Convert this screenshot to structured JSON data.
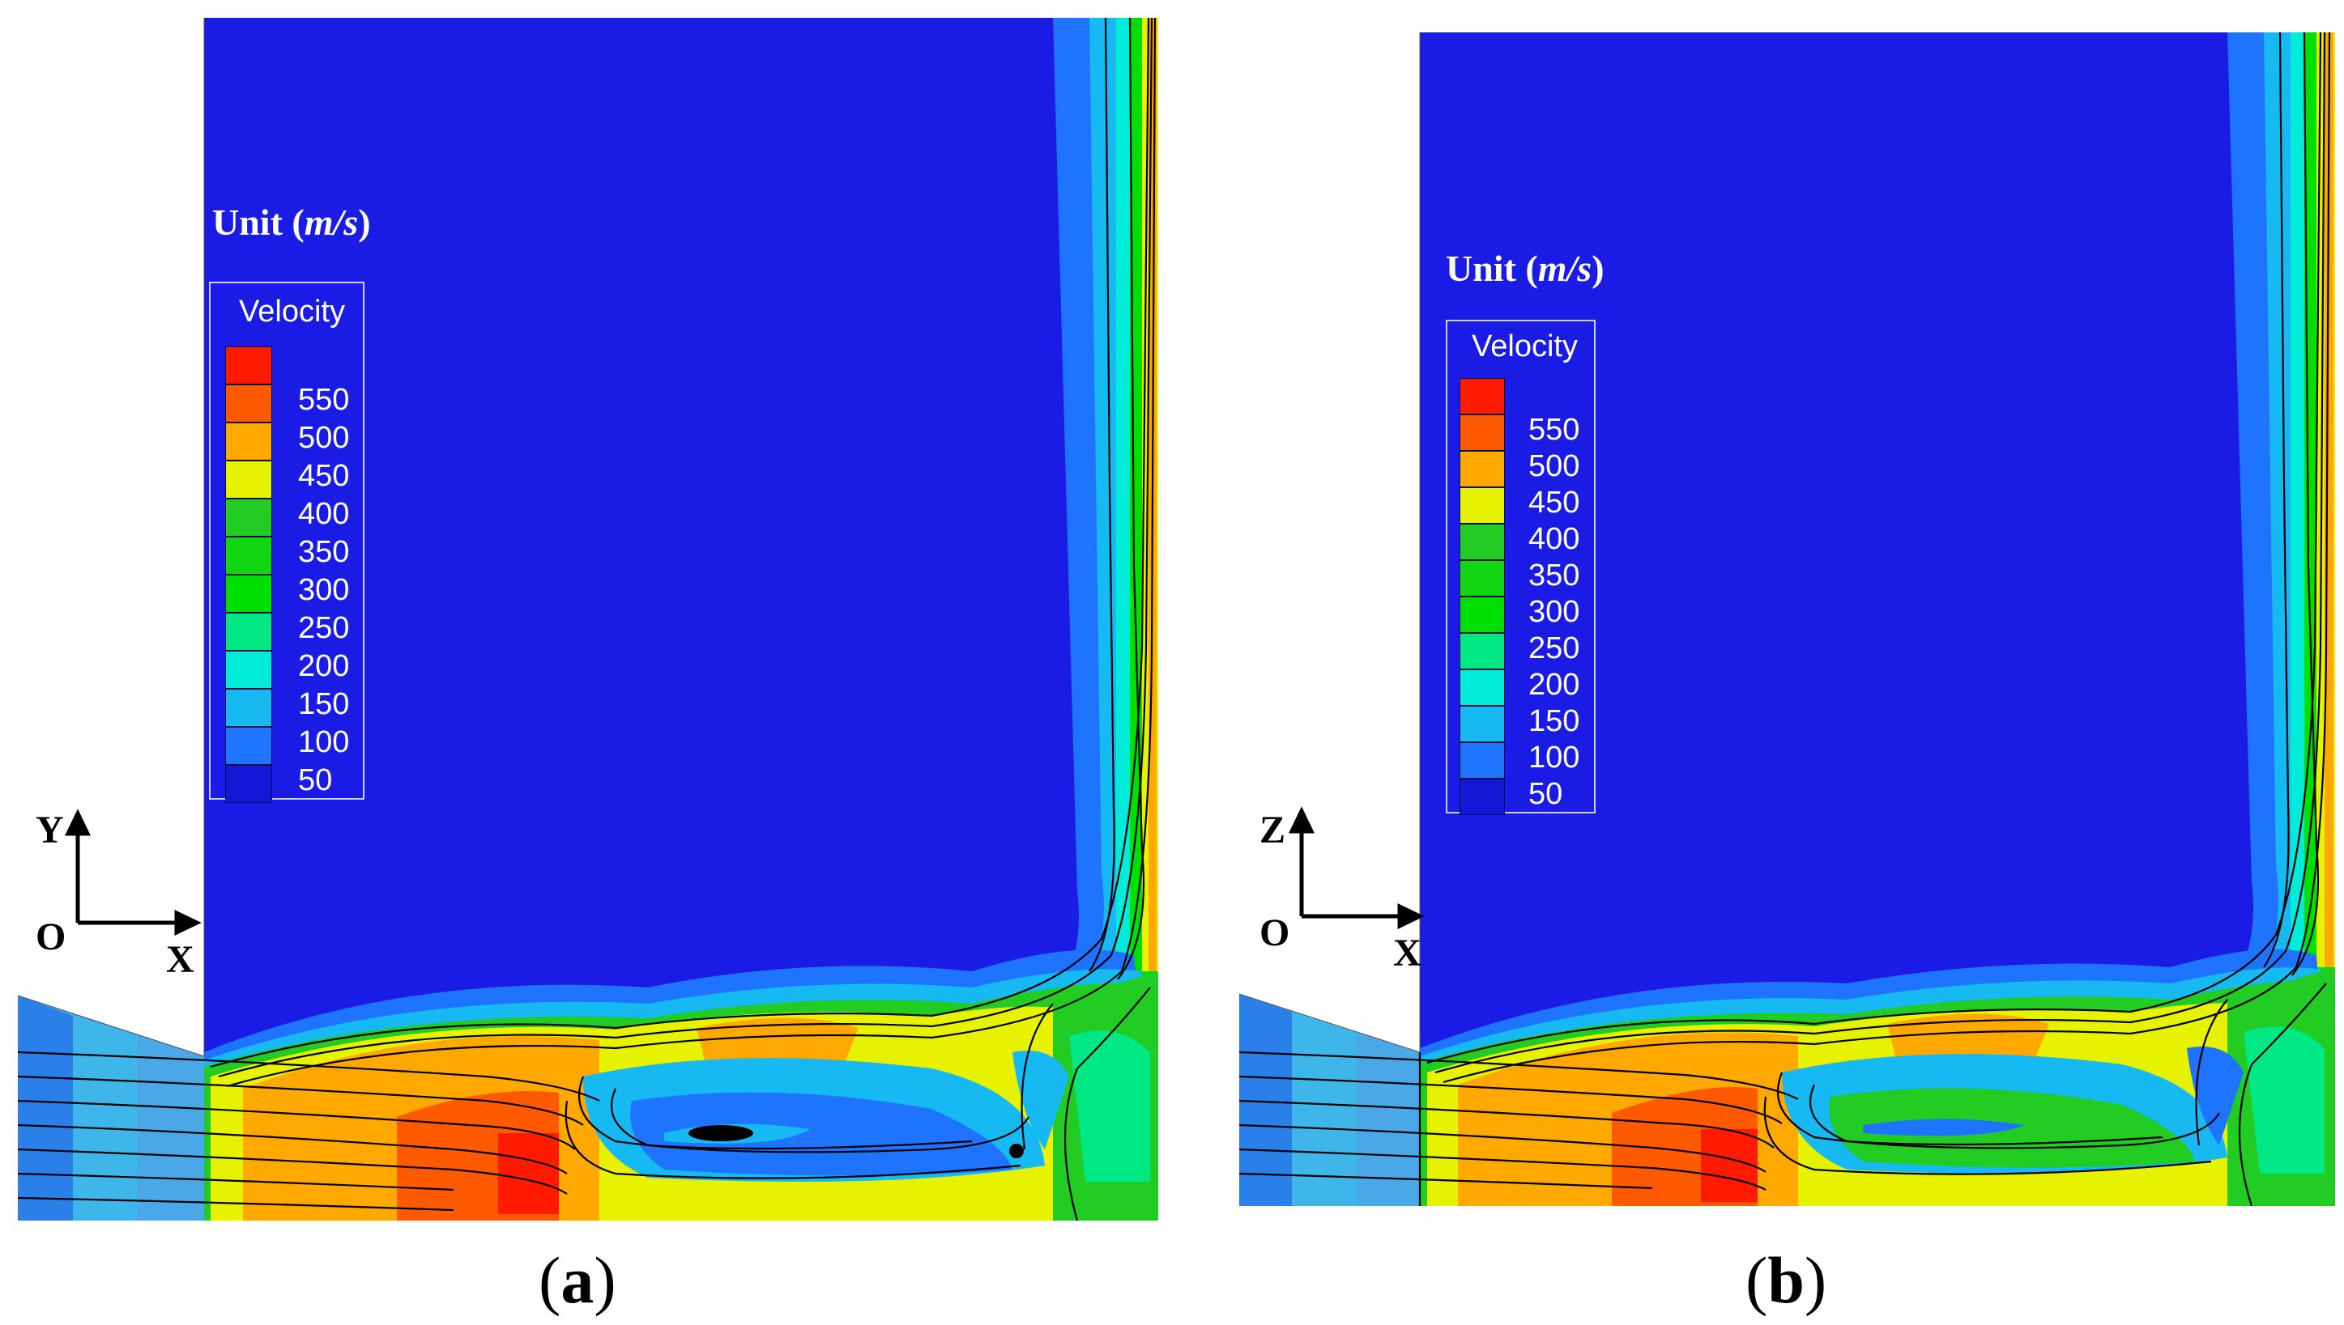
{
  "panels": [
    {
      "caption": {
        "open": "(",
        "letter": "a",
        "close": ")"
      },
      "unit": {
        "prefix": "Unit (",
        "unit": "m/s",
        "suffix": ")"
      },
      "legend_title": "Velocity",
      "axes": {
        "vertical": "Y",
        "horizontal": "X",
        "origin": "O"
      }
    },
    {
      "caption": {
        "open": "(",
        "letter": "b",
        "close": ")"
      },
      "unit": {
        "prefix": "Unit (",
        "unit": "m/s",
        "suffix": ")"
      },
      "legend_title": "Velocity",
      "axes": {
        "vertical": "Z",
        "horizontal": "X",
        "origin": "O"
      }
    }
  ],
  "legend_levels": [
    {
      "label": "",
      "color": "#ff1a00"
    },
    {
      "label": "550",
      "color": "#ff5a00"
    },
    {
      "label": "500",
      "color": "#ffa800"
    },
    {
      "label": "450",
      "color": "#e6f200"
    },
    {
      "label": "400",
      "color": "#22cc22"
    },
    {
      "label": "350",
      "color": "#11d611"
    },
    {
      "label": "300",
      "color": "#00e000"
    },
    {
      "label": "250",
      "color": "#00e884"
    },
    {
      "label": "200",
      "color": "#00ecd8"
    },
    {
      "label": "150",
      "color": "#17b9f2"
    },
    {
      "label": "100",
      "color": "#1e73ff"
    },
    {
      "label": "50",
      "color": "#1218d6"
    }
  ],
  "colors": {
    "background_field": "#1a1ce6",
    "streamline": "#000000",
    "legend_border": "#c8d0ff"
  }
}
